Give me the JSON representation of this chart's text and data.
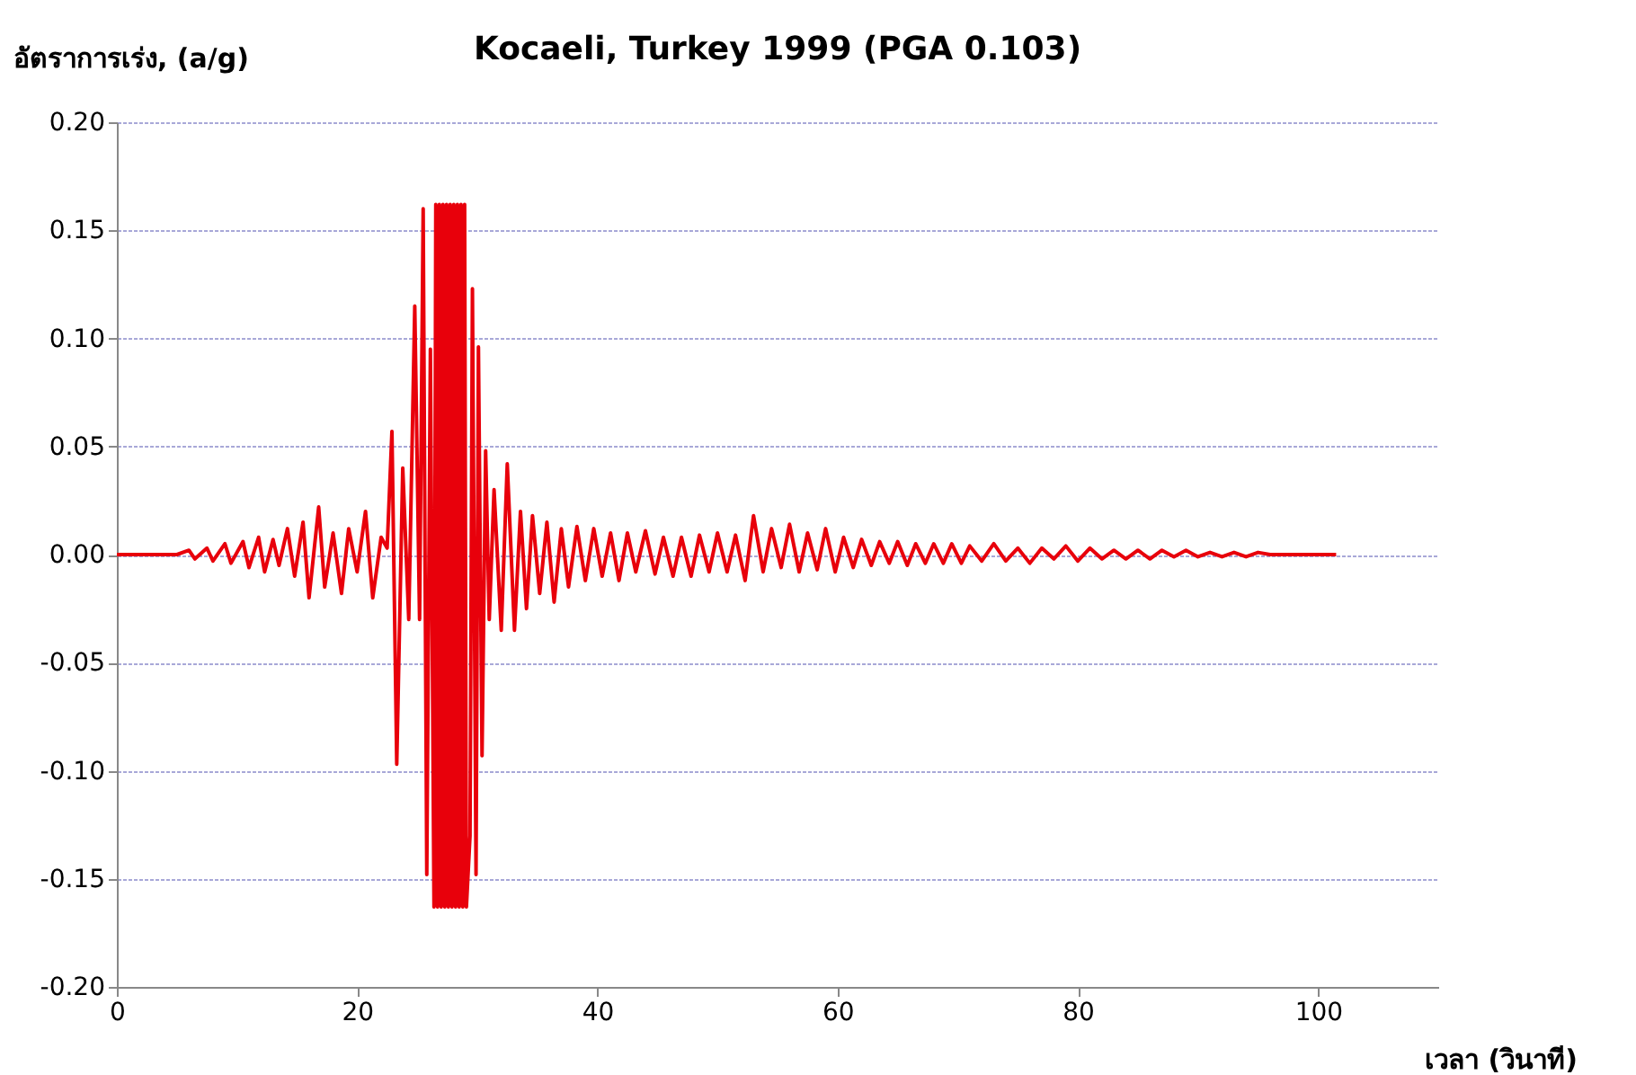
{
  "chart_data": {
    "type": "line",
    "title": "Kocaeli, Turkey 1999 (PGA 0.103)",
    "xlabel": "เวลา (วินาที)",
    "ylabel": "อัตราการเร่ง, (a/g)",
    "xlim": [
      0,
      110
    ],
    "xticks": [
      0,
      20,
      40,
      60,
      80,
      100
    ],
    "ylim": [
      -0.2,
      0.2
    ],
    "yticks": [
      {
        "value": -0.2,
        "label": "-0.20"
      },
      {
        "value": -0.15,
        "label": "-0.15"
      },
      {
        "value": -0.1,
        "label": "-0.10"
      },
      {
        "value": -0.05,
        "label": "-0.05"
      },
      {
        "value": 0,
        "label": "0.00"
      },
      {
        "value": 0.05,
        "label": "0.05"
      },
      {
        "value": 0.1,
        "label": "0.10"
      },
      {
        "value": 0.15,
        "label": "0.15"
      },
      {
        "value": 0.2,
        "label": "0.20"
      }
    ],
    "grid": "y",
    "series": [
      {
        "color": "#e8000b",
        "x": [
          0,
          5,
          6,
          6.5,
          7.5,
          8,
          9,
          9.5,
          10.5,
          11,
          11.8,
          12.3,
          13,
          13.5,
          14.2,
          14.8,
          15.5,
          16,
          16.8,
          17.3,
          18,
          18.7,
          19.3,
          20,
          20.7,
          21.3,
          22,
          22.5,
          22.9,
          23.3,
          23.8,
          24.3,
          24.8,
          25.2,
          25.5,
          25.8,
          26.1,
          26.4,
          26.55,
          26.7,
          26.85,
          27,
          27.15,
          27.3,
          27.45,
          27.6,
          27.75,
          27.9,
          28.05,
          28.2,
          28.35,
          28.5,
          28.65,
          28.8,
          28.95,
          29.1,
          29.4,
          29.6,
          29.9,
          30.1,
          30.4,
          30.7,
          31,
          31.4,
          32,
          32.5,
          33.1,
          33.6,
          34.1,
          34.6,
          35.2,
          35.8,
          36.4,
          37,
          37.6,
          38.3,
          39,
          39.7,
          40.4,
          41.1,
          41.8,
          42.5,
          43.2,
          44,
          44.8,
          45.5,
          46.3,
          47,
          47.8,
          48.5,
          49.3,
          50,
          50.8,
          51.5,
          52.3,
          53,
          53.8,
          54.5,
          55.3,
          56,
          56.8,
          57.5,
          58.3,
          59,
          59.8,
          60.5,
          61.3,
          62,
          62.8,
          63.5,
          64.3,
          65,
          65.8,
          66.5,
          67.3,
          68,
          68.8,
          69.5,
          70.3,
          71,
          72,
          73,
          74,
          75,
          76,
          77,
          78,
          79,
          80,
          81,
          82,
          83,
          84,
          85,
          86,
          87,
          88,
          89,
          90,
          91,
          92,
          93,
          94,
          95,
          96,
          101.5
        ],
        "values": [
          0,
          0,
          0.002,
          -0.002,
          0.003,
          -0.003,
          0.005,
          -0.004,
          0.006,
          -0.006,
          0.008,
          -0.008,
          0.007,
          -0.005,
          0.012,
          -0.01,
          0.015,
          -0.02,
          0.022,
          -0.015,
          0.01,
          -0.018,
          0.012,
          -0.008,
          0.02,
          -0.02,
          0.008,
          0.003,
          0.057,
          -0.097,
          0.04,
          -0.03,
          0.115,
          -0.03,
          0.16,
          -0.148,
          0.095,
          -0.163,
          0.162,
          -0.163,
          0.162,
          -0.163,
          0.162,
          -0.163,
          0.162,
          -0.163,
          0.162,
          -0.163,
          0.162,
          -0.163,
          0.162,
          -0.163,
          0.162,
          -0.163,
          0.162,
          -0.163,
          -0.13,
          0.123,
          -0.148,
          0.096,
          -0.093,
          0.048,
          -0.03,
          0.03,
          -0.035,
          0.042,
          -0.035,
          0.02,
          -0.025,
          0.018,
          -0.018,
          0.015,
          -0.022,
          0.012,
          -0.015,
          0.013,
          -0.012,
          0.012,
          -0.01,
          0.01,
          -0.012,
          0.01,
          -0.008,
          0.011,
          -0.009,
          0.008,
          -0.01,
          0.008,
          -0.01,
          0.009,
          -0.008,
          0.01,
          -0.008,
          0.009,
          -0.012,
          0.018,
          -0.008,
          0.012,
          -0.006,
          0.014,
          -0.008,
          0.01,
          -0.007,
          0.012,
          -0.008,
          0.008,
          -0.006,
          0.007,
          -0.005,
          0.006,
          -0.004,
          0.006,
          -0.005,
          0.005,
          -0.004,
          0.005,
          -0.004,
          0.005,
          -0.004,
          0.004,
          -0.003,
          0.005,
          -0.003,
          0.003,
          -0.004,
          0.003,
          -0.002,
          0.004,
          -0.003,
          0.003,
          -0.002,
          0.002,
          -0.002,
          0.002,
          -0.002,
          0.002,
          -0.001,
          0.002,
          -0.001,
          0.001,
          -0.001,
          0.001,
          -0.001,
          0.001,
          0,
          0
        ]
      }
    ]
  }
}
